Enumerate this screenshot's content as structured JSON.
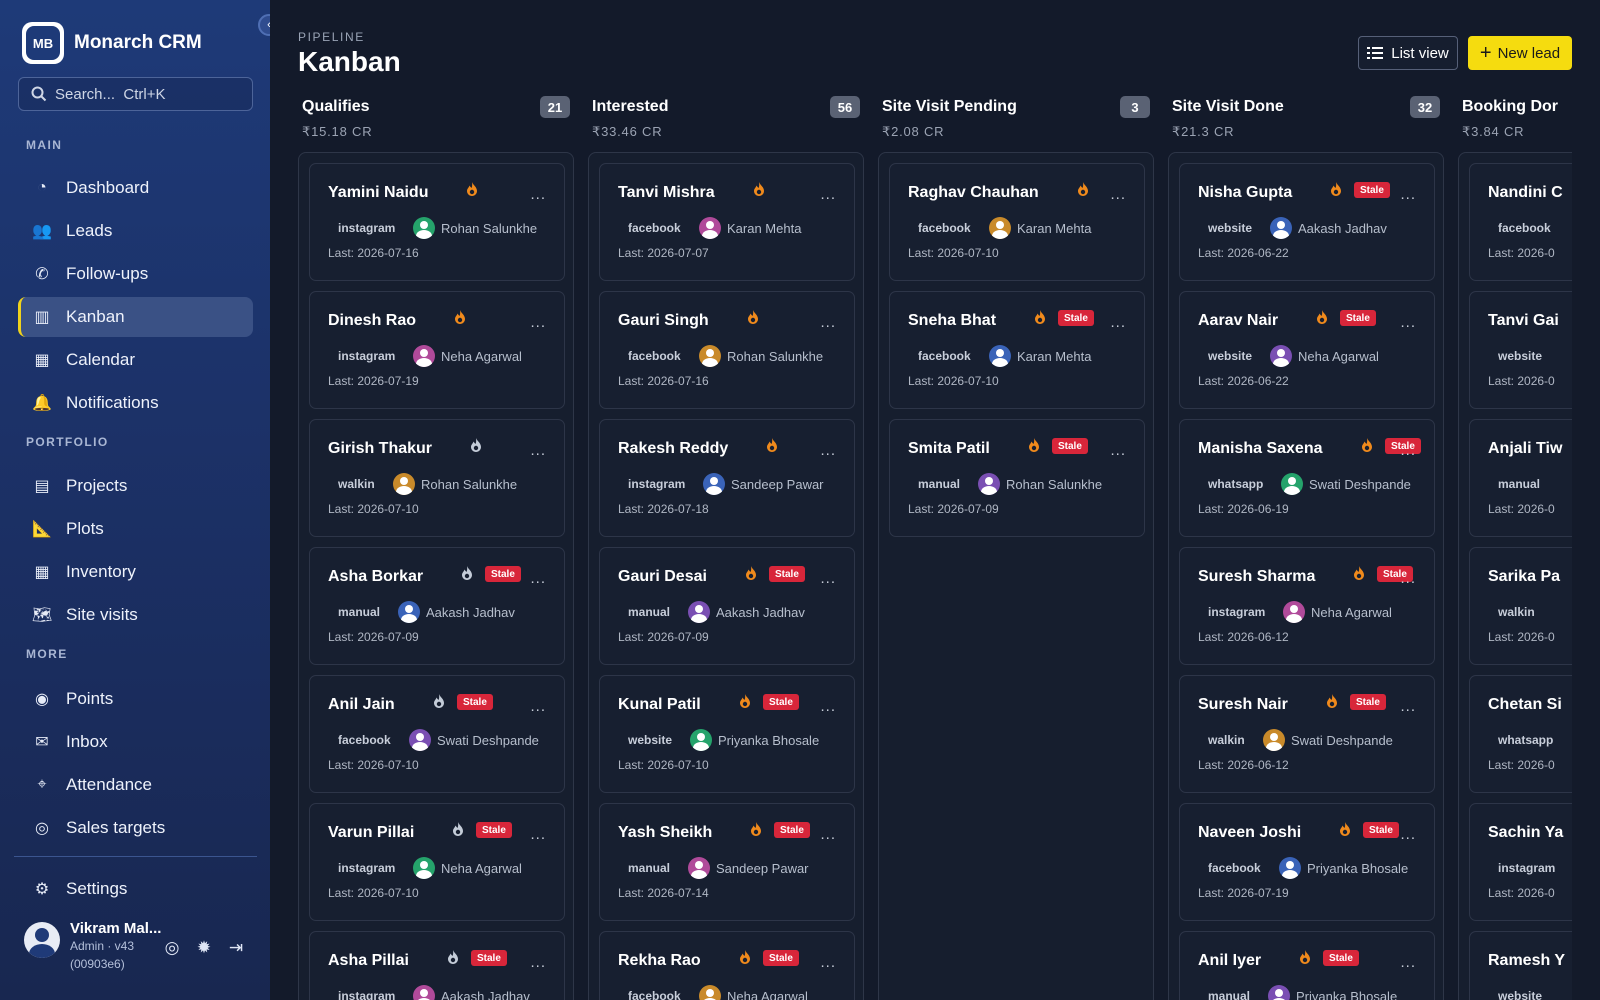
{
  "app": {
    "name": "Monarch CRM",
    "logo_text": "MB"
  },
  "search": {
    "placeholder": "Search...  Ctrl+K"
  },
  "sidebar": {
    "sections": [
      {
        "label": "MAIN",
        "items": [
          {
            "label": "Dashboard",
            "icon": "gauge-icon"
          },
          {
            "label": "Leads",
            "icon": "users-icon"
          },
          {
            "label": "Follow-ups",
            "icon": "phone-icon"
          },
          {
            "label": "Kanban",
            "icon": "kanban-icon",
            "active": true
          },
          {
            "label": "Calendar",
            "icon": "calendar-icon"
          },
          {
            "label": "Notifications",
            "icon": "bell-icon"
          }
        ]
      },
      {
        "label": "PORTFOLIO",
        "items": [
          {
            "label": "Projects",
            "icon": "building-icon"
          },
          {
            "label": "Plots",
            "icon": "ruler-icon"
          },
          {
            "label": "Inventory",
            "icon": "grid-icon"
          },
          {
            "label": "Site visits",
            "icon": "map-icon"
          }
        ]
      },
      {
        "label": "MORE",
        "items": [
          {
            "label": "Points",
            "icon": "coins-icon"
          },
          {
            "label": "Inbox",
            "icon": "mail-icon"
          },
          {
            "label": "Attendance",
            "icon": "location-pin-icon"
          },
          {
            "label": "Sales targets",
            "icon": "target-icon"
          }
        ]
      }
    ],
    "settings": {
      "label": "Settings",
      "icon": "gear-icon"
    },
    "user": {
      "name": "Vikram Mal...",
      "role": "Admin · v43",
      "build": "(00903e6)"
    }
  },
  "header": {
    "eyebrow": "PIPELINE",
    "title": "Kanban",
    "list_view_label": "List view",
    "new_lead_label": "New lead"
  },
  "colors": {
    "accent": "#f5dc0f",
    "stale": "#d8263a",
    "fire_hot": "#f08a1c",
    "fire_cool": "#c4ccd8"
  },
  "columns": [
    {
      "title": "Qualifies",
      "count": "21",
      "value": "₹15.18 CR",
      "cards": [
        {
          "name": "Yamini Naidu",
          "fire": "hot",
          "stale": false,
          "source": "instagram",
          "agent": "Rohan Salunkhe",
          "last": "Last: 2026-07-16"
        },
        {
          "name": "Dinesh Rao",
          "fire": "hot",
          "stale": false,
          "source": "instagram",
          "agent": "Neha Agarwal",
          "last": "Last: 2026-07-19"
        },
        {
          "name": "Girish Thakur",
          "fire": "cool",
          "stale": false,
          "source": "walkin",
          "agent": "Rohan Salunkhe",
          "last": "Last: 2026-07-10"
        },
        {
          "name": "Asha Borkar",
          "fire": "cool",
          "stale": true,
          "source": "manual",
          "agent": "Aakash Jadhav",
          "last": "Last: 2026-07-09"
        },
        {
          "name": "Anil Jain",
          "fire": "cool",
          "stale": true,
          "source": "facebook",
          "agent": "Swati Deshpande",
          "last": "Last: 2026-07-10"
        },
        {
          "name": "Varun Pillai",
          "fire": "cool",
          "stale": true,
          "source": "instagram",
          "agent": "Neha Agarwal",
          "last": "Last: 2026-07-10"
        },
        {
          "name": "Asha Pillai",
          "fire": "cool",
          "stale": true,
          "source": "instagram",
          "agent": "Aakash Jadhav",
          "last": ""
        }
      ]
    },
    {
      "title": "Interested",
      "count": "56",
      "value": "₹33.46 CR",
      "cards": [
        {
          "name": "Tanvi Mishra",
          "fire": "hot",
          "stale": false,
          "source": "facebook",
          "agent": "Karan Mehta",
          "last": "Last: 2026-07-07"
        },
        {
          "name": "Gauri Singh",
          "fire": "hot",
          "stale": false,
          "source": "facebook",
          "agent": "Rohan Salunkhe",
          "last": "Last: 2026-07-16"
        },
        {
          "name": "Rakesh Reddy",
          "fire": "hot",
          "stale": false,
          "source": "instagram",
          "agent": "Sandeep Pawar",
          "last": "Last: 2026-07-18"
        },
        {
          "name": "Gauri Desai",
          "fire": "hot",
          "stale": true,
          "source": "manual",
          "agent": "Aakash Jadhav",
          "last": "Last: 2026-07-09"
        },
        {
          "name": "Kunal Patil",
          "fire": "hot",
          "stale": true,
          "source": "website",
          "agent": "Priyanka Bhosale",
          "last": "Last: 2026-07-10"
        },
        {
          "name": "Yash Sheikh",
          "fire": "hot",
          "stale": true,
          "source": "manual",
          "agent": "Sandeep Pawar",
          "last": "Last: 2026-07-14"
        },
        {
          "name": "Rekha Rao",
          "fire": "hot",
          "stale": true,
          "source": "facebook",
          "agent": "Neha Agarwal",
          "last": ""
        }
      ]
    },
    {
      "title": "Site Visit Pending",
      "count": "3",
      "value": "₹2.08 CR",
      "cards": [
        {
          "name": "Raghav Chauhan",
          "fire": "hot",
          "stale": false,
          "source": "facebook",
          "agent": "Karan Mehta",
          "last": "Last: 2026-07-10"
        },
        {
          "name": "Sneha Bhat",
          "fire": "hot",
          "stale": true,
          "source": "facebook",
          "agent": "Karan Mehta",
          "last": "Last: 2026-07-10"
        },
        {
          "name": "Smita Patil",
          "fire": "hot",
          "stale": true,
          "source": "manual",
          "agent": "Rohan Salunkhe",
          "last": "Last: 2026-07-09"
        }
      ]
    },
    {
      "title": "Site Visit Done",
      "count": "32",
      "value": "₹21.3 CR",
      "cards": [
        {
          "name": "Nisha Gupta",
          "fire": "hot",
          "stale": true,
          "source": "website",
          "agent": "Aakash Jadhav",
          "last": "Last: 2026-06-22"
        },
        {
          "name": "Aarav Nair",
          "fire": "hot",
          "stale": true,
          "source": "website",
          "agent": "Neha Agarwal",
          "last": "Last: 2026-06-22"
        },
        {
          "name": "Manisha Saxena",
          "fire": "hot",
          "stale": true,
          "source": "whatsapp",
          "agent": "Swati Deshpande",
          "last": "Last: 2026-06-19"
        },
        {
          "name": "Suresh Sharma",
          "fire": "hot",
          "stale": true,
          "source": "instagram",
          "agent": "Neha Agarwal",
          "last": "Last: 2026-06-12"
        },
        {
          "name": "Suresh Nair",
          "fire": "hot",
          "stale": true,
          "source": "walkin",
          "agent": "Swati Deshpande",
          "last": "Last: 2026-06-12"
        },
        {
          "name": "Naveen Joshi",
          "fire": "hot",
          "stale": true,
          "source": "facebook",
          "agent": "Priyanka Bhosale",
          "last": "Last: 2026-07-19"
        },
        {
          "name": "Anil Iyer",
          "fire": "hot",
          "stale": true,
          "source": "manual",
          "agent": "Priyanka Bhosale",
          "last": ""
        }
      ]
    },
    {
      "title": "Booking Dor",
      "count": "",
      "value": "₹3.84 CR",
      "cards": [
        {
          "name": "Nandini C",
          "fire": "",
          "stale": false,
          "source": "facebook",
          "agent": "",
          "last": "Last: 2026-0"
        },
        {
          "name": "Tanvi Gai",
          "fire": "",
          "stale": false,
          "source": "website",
          "agent": "",
          "last": "Last: 2026-0"
        },
        {
          "name": "Anjali Tiw",
          "fire": "",
          "stale": false,
          "source": "manual",
          "agent": "",
          "last": "Last: 2026-0"
        },
        {
          "name": "Sarika Pa",
          "fire": "",
          "stale": false,
          "source": "walkin",
          "agent": "",
          "last": "Last: 2026-0"
        },
        {
          "name": "Chetan Si",
          "fire": "",
          "stale": false,
          "source": "whatsapp",
          "agent": "",
          "last": "Last: 2026-0"
        },
        {
          "name": "Sachin Ya",
          "fire": "",
          "stale": false,
          "source": "instagram",
          "agent": "",
          "last": "Last: 2026-0"
        },
        {
          "name": "Ramesh Y",
          "fire": "",
          "stale": false,
          "source": "website",
          "agent": "",
          "last": ""
        }
      ]
    }
  ]
}
